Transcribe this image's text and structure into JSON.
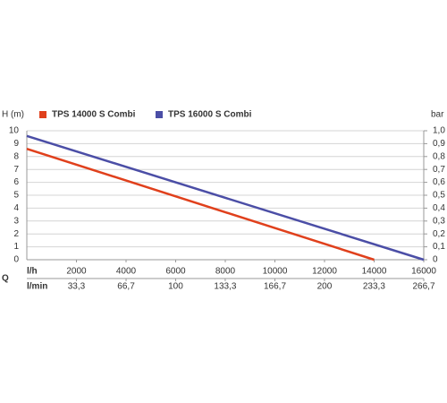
{
  "chart_data": {
    "type": "line",
    "y_label": "H (m)",
    "y2_label": "bar",
    "x_label": "l/h",
    "x2_label": "l/min",
    "x_title": "Q",
    "xlim": [
      0,
      16000
    ],
    "xticks": [
      2000,
      4000,
      6000,
      8000,
      10000,
      12000,
      14000,
      16000
    ],
    "x2lim": [
      0,
      266.7
    ],
    "x2ticks": [
      {
        "value": 33.3,
        "label": "33,3"
      },
      {
        "value": 66.7,
        "label": "66,7"
      },
      100,
      {
        "value": 133.3,
        "label": "133,3"
      },
      {
        "value": 166.7,
        "label": "166,7"
      },
      200,
      {
        "value": 233.3,
        "label": "233,3"
      },
      {
        "value": 266.7,
        "label": "266,7"
      }
    ],
    "ylim": [
      0,
      10
    ],
    "yticks": [
      0,
      1,
      2,
      3,
      4,
      5,
      6,
      7,
      8,
      9,
      10
    ],
    "y2lim": [
      0,
      1
    ],
    "y2ticks": [
      0,
      {
        "value": 0.1,
        "label": "0,1"
      },
      {
        "value": 0.2,
        "label": "0,2"
      },
      {
        "value": 0.3,
        "label": "0,3"
      },
      {
        "value": 0.4,
        "label": "0,4"
      },
      {
        "value": 0.5,
        "label": "0,5"
      },
      {
        "value": 0.6,
        "label": "0,6"
      },
      {
        "value": 0.7,
        "label": "0,7"
      },
      {
        "value": 0.8,
        "label": "0,8"
      },
      {
        "value": 0.9,
        "label": "0,9"
      },
      {
        "value": 1.0,
        "label": "1,0"
      }
    ],
    "grid": true,
    "series": [
      {
        "name": "TPS 14000 S Combi",
        "color": "#e0401c",
        "x": [
          0,
          14000
        ],
        "values": [
          8.6,
          0
        ]
      },
      {
        "name": "TPS 16000 S Combi",
        "color": "#4b4ea6",
        "x": [
          0,
          16000
        ],
        "values": [
          9.6,
          0
        ]
      }
    ]
  }
}
